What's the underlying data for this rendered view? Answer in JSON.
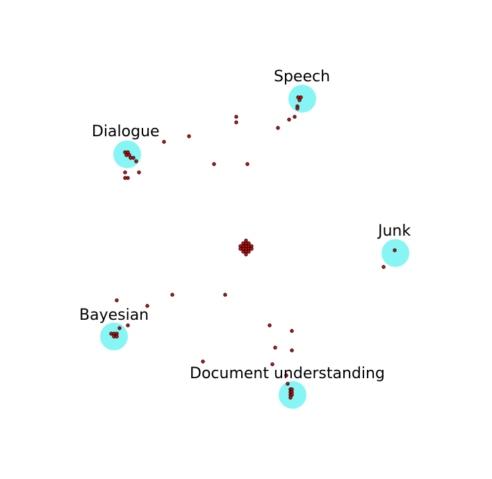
{
  "diagram": {
    "background_color": "#ffffff",
    "cluster_color": "#88f5f5",
    "point_fill": "#cc1111",
    "point_stroke": "#000000",
    "clusters": [
      {
        "id": "speech",
        "label": "Speech"
      },
      {
        "id": "dialogue",
        "label": "Dialogue"
      },
      {
        "id": "junk",
        "label": "Junk"
      },
      {
        "id": "bayesian",
        "label": "Bayesian"
      },
      {
        "id": "document-understanding",
        "label": "Document understanding"
      }
    ]
  }
}
